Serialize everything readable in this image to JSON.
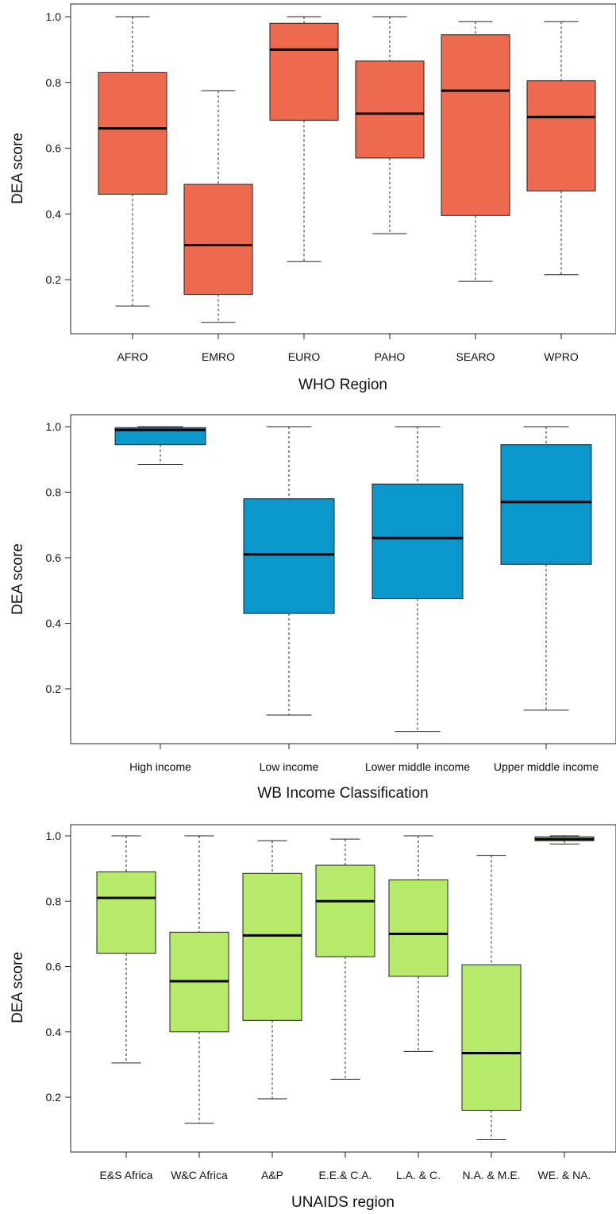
{
  "chart_data": [
    {
      "type": "box",
      "xlabel": "WHO Region",
      "ylabel": "DEA score",
      "ylim": [
        0.0,
        1.0
      ],
      "yticks": [
        "0.2",
        "0.4",
        "0.6",
        "0.8",
        "1.0"
      ],
      "fill_color": "#EE6A4F",
      "grid": false,
      "categories": [
        "AFRO",
        "EMRO",
        "EURO",
        "PAHO",
        "SEARO",
        "WPRO"
      ],
      "boxes": [
        {
          "min": 0.12,
          "q1": 0.46,
          "median": 0.66,
          "q3": 0.83,
          "max": 1.0
        },
        {
          "min": 0.07,
          "q1": 0.155,
          "median": 0.305,
          "q3": 0.49,
          "max": 0.775
        },
        {
          "min": 0.255,
          "q1": 0.685,
          "median": 0.9,
          "q3": 0.98,
          "max": 1.0
        },
        {
          "min": 0.34,
          "q1": 0.57,
          "median": 0.705,
          "q3": 0.865,
          "max": 1.0
        },
        {
          "min": 0.195,
          "q1": 0.395,
          "median": 0.775,
          "q3": 0.945,
          "max": 0.985
        },
        {
          "min": 0.215,
          "q1": 0.47,
          "median": 0.695,
          "q3": 0.805,
          "max": 0.985
        }
      ]
    },
    {
      "type": "box",
      "xlabel": "WB Income Classification",
      "ylabel": "DEA score",
      "ylim": [
        0.0,
        1.0
      ],
      "yticks": [
        "0.2",
        "0.4",
        "0.6",
        "0.8",
        "1.0"
      ],
      "fill_color": "#0A97CB",
      "grid": false,
      "categories": [
        "High income",
        "Low income",
        "Lower middle income",
        "Upper middle income"
      ],
      "boxes": [
        {
          "min": 0.885,
          "q1": 0.945,
          "median": 0.99,
          "q3": 0.997,
          "max": 1.0
        },
        {
          "min": 0.12,
          "q1": 0.43,
          "median": 0.61,
          "q3": 0.78,
          "max": 1.0
        },
        {
          "min": 0.07,
          "q1": 0.475,
          "median": 0.66,
          "q3": 0.825,
          "max": 1.0
        },
        {
          "min": 0.135,
          "q1": 0.58,
          "median": 0.77,
          "q3": 0.945,
          "max": 1.0
        }
      ]
    },
    {
      "type": "box",
      "xlabel": "UNAIDS region",
      "ylabel": "DEA score",
      "ylim": [
        0.0,
        1.0
      ],
      "yticks": [
        "0.2",
        "0.4",
        "0.6",
        "0.8",
        "1.0"
      ],
      "fill_color": "#B8EA69",
      "grid": false,
      "categories": [
        "E&S Africa",
        "W&C Africa",
        "A&P",
        "E.E.& C.A.",
        "L.A. & C.",
        "N.A. & M.E.",
        "WE. & NA."
      ],
      "boxes": [
        {
          "min": 0.305,
          "q1": 0.64,
          "median": 0.81,
          "q3": 0.89,
          "max": 1.0
        },
        {
          "min": 0.12,
          "q1": 0.4,
          "median": 0.555,
          "q3": 0.705,
          "max": 1.0
        },
        {
          "min": 0.195,
          "q1": 0.435,
          "median": 0.695,
          "q3": 0.885,
          "max": 0.985
        },
        {
          "min": 0.255,
          "q1": 0.63,
          "median": 0.8,
          "q3": 0.91,
          "max": 0.99
        },
        {
          "min": 0.34,
          "q1": 0.57,
          "median": 0.7,
          "q3": 0.865,
          "max": 1.0
        },
        {
          "min": 0.07,
          "q1": 0.16,
          "median": 0.335,
          "q3": 0.605,
          "max": 0.94
        },
        {
          "min": 0.975,
          "q1": 0.985,
          "median": 0.99,
          "q3": 0.997,
          "max": 1.0
        }
      ]
    }
  ]
}
